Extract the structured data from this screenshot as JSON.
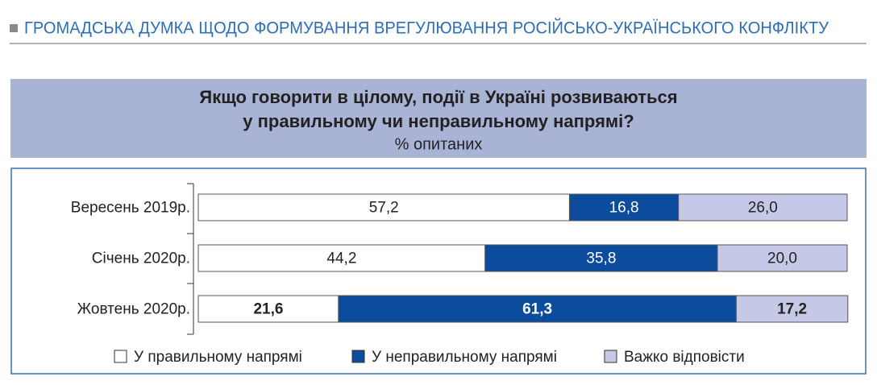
{
  "header": "ГРОМАДСЬКА ДУМКА ЩОДО ФОРМУВАННЯ ВРЕГУЛЮВАННЯ РОСІЙСЬКО-УКРАЇНСЬКОГО КОНФЛІКТУ",
  "chart_data": {
    "type": "stacked-bar-horizontal",
    "title": [
      "Якщо говорити в цілому, події в Україні розвиваються",
      "у правильному чи неправильному напрямі?"
    ],
    "subtitle": "% опитаних",
    "categories": [
      "Вересень 2019р.",
      "Січень 2020р.",
      "Жовтень 2020р."
    ],
    "bold_rows": [
      false,
      false,
      true
    ],
    "xlim": [
      0,
      100
    ],
    "series": [
      {
        "name": "У правильному напрямі",
        "color": "#ffffff",
        "label_color": "#222222",
        "values": [
          57.2,
          44.2,
          21.6
        ],
        "value_labels": [
          "57,2",
          "44,2",
          "21,6"
        ]
      },
      {
        "name": "У неправильному напрямі",
        "color": "#0b4c9c",
        "label_color": "#ffffff",
        "values": [
          16.8,
          35.8,
          61.3
        ],
        "value_labels": [
          "16,8",
          "35,8",
          "61,3"
        ]
      },
      {
        "name": "Важко відповісти",
        "color": "#c5c8e6",
        "label_color": "#222222",
        "values": [
          26.0,
          20.0,
          17.2
        ],
        "value_labels": [
          "26,0",
          "20,0",
          "17,2"
        ]
      }
    ]
  }
}
